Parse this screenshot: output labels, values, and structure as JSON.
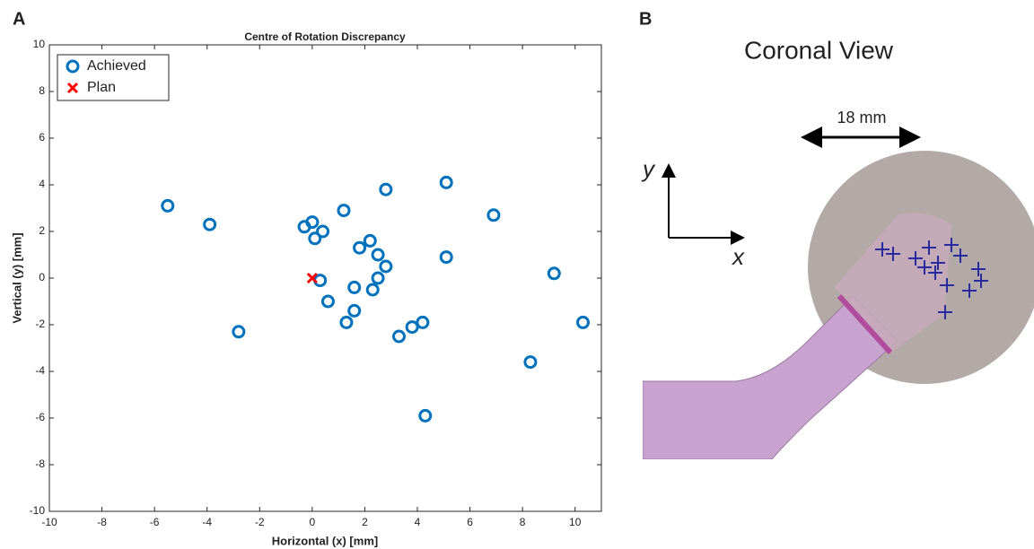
{
  "chart_data": {
    "type": "scatter",
    "panel_label": "A",
    "title": "Centre of Rotation Discrepancy",
    "xlabel": "Horizontal (x) [mm]",
    "ylabel": "Vertical (y) [mm]",
    "xlim": [
      -10,
      11
    ],
    "ylim": [
      -10,
      10
    ],
    "xticks": [
      -10,
      -8,
      -6,
      -4,
      -2,
      0,
      2,
      4,
      6,
      8,
      10
    ],
    "yticks": [
      -10,
      -8,
      -6,
      -4,
      -2,
      0,
      2,
      4,
      6,
      8,
      10
    ],
    "legend": "upper left",
    "series": [
      {
        "name": "Achieved",
        "color": "#0072bd",
        "marker": "circle",
        "x": [
          -5.5,
          -3.9,
          -2.8,
          -0.3,
          0,
          0.1,
          0.4,
          0.3,
          0.6,
          1.2,
          1.3,
          1.6,
          1.6,
          1.8,
          2.2,
          2.3,
          2.5,
          2.5,
          2.8,
          2.8,
          3.3,
          3.8,
          4.2,
          4.3,
          5.1,
          5.1,
          6.9,
          8.3,
          9.2,
          10.3
        ],
        "values": [
          3.1,
          2.3,
          -2.3,
          2.2,
          2.4,
          1.7,
          2.0,
          -0.1,
          -1.0,
          2.9,
          -1.9,
          -0.4,
          -1.4,
          1.3,
          1.6,
          -0.5,
          1.0,
          0.0,
          0.5,
          3.8,
          -2.5,
          -2.1,
          -1.9,
          -5.9,
          4.1,
          0.9,
          2.7,
          -3.6,
          0.2,
          -1.9
        ]
      },
      {
        "name": "Plan",
        "color": "#ff0000",
        "marker": "x",
        "x": [
          0
        ],
        "values": [
          0
        ]
      }
    ]
  },
  "panel_b": {
    "panel_label": "B",
    "title": "Coronal View",
    "scale_label": "18 mm",
    "y_axis_label": "y",
    "x_axis_label": "x"
  }
}
